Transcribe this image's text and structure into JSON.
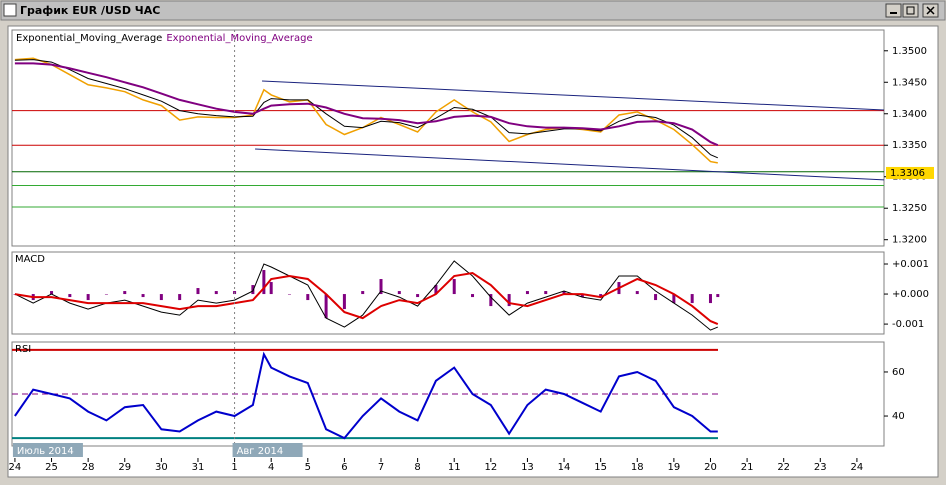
{
  "window": {
    "title": "График EUR /USD ЧАС"
  },
  "chart_data": [
    {
      "type": "line",
      "legend": [
        "Exponential_Moving_Average",
        "Exponential_Moving_Average"
      ],
      "xlim": [
        -0.08,
        23.74
      ],
      "ylim": [
        1.319,
        1.3533
      ],
      "yticks": [
        {
          "value": 1.35,
          "label": "1.3500"
        },
        {
          "value": 1.345,
          "label": "1.3450"
        },
        {
          "value": 1.34,
          "label": "1.3400"
        },
        {
          "value": 1.335,
          "label": "1.3350"
        },
        {
          "value": 1.33,
          "label": "1.3300"
        },
        {
          "value": 1.325,
          "label": "1.3250"
        },
        {
          "value": 1.32,
          "label": "1.3200"
        }
      ],
      "last_price": 1.3306,
      "hlines": [
        1.3405,
        1.335,
        1.3308,
        1.3286,
        1.3252
      ],
      "hline_colors": [
        "#cc0000",
        "#cc0000",
        "#006600",
        "#33aa33",
        "#33aa33"
      ],
      "trendlines": [
        {
          "x": [
            6.75,
            23.74
          ],
          "y": [
            1.3452,
            1.3406
          ],
          "color": "#1a237e"
        },
        {
          "x": [
            6.56,
            23.74
          ],
          "y": [
            1.3344,
            1.3295
          ],
          "color": "#1a237e"
        }
      ],
      "x": [
        0,
        0.5,
        1,
        1.5,
        2,
        2.5,
        3,
        3.5,
        4,
        4.5,
        5,
        5.5,
        6,
        6.5,
        6.8,
        7,
        7.5,
        8,
        8.5,
        9,
        9.5,
        10,
        10.5,
        11,
        11.5,
        12,
        12.5,
        13,
        13.5,
        14,
        14.5,
        15,
        15.5,
        16,
        16.5,
        17,
        17.5,
        18,
        18.5,
        19,
        19.2
      ],
      "series": [
        {
          "color": "#f0a000",
          "values": [
            1.3486,
            1.3488,
            1.3478,
            1.3462,
            1.3446,
            1.3441,
            1.3435,
            1.3422,
            1.3413,
            1.339,
            1.3395,
            1.3394,
            1.3394,
            1.3398,
            1.3438,
            1.343,
            1.3419,
            1.3422,
            1.3383,
            1.3367,
            1.3378,
            1.3394,
            1.3383,
            1.3371,
            1.3403,
            1.3422,
            1.3403,
            1.3387,
            1.3356,
            1.3367,
            1.3375,
            1.3378,
            1.3375,
            1.3371,
            1.3398,
            1.3403,
            1.339,
            1.3375,
            1.3351,
            1.3324,
            1.3322
          ]
        },
        {
          "color": "#000000",
          "values": [
            1.3485,
            1.3486,
            1.3482,
            1.347,
            1.3456,
            1.3448,
            1.344,
            1.343,
            1.342,
            1.3405,
            1.34,
            1.3397,
            1.3395,
            1.3396,
            1.3418,
            1.3424,
            1.3422,
            1.3422,
            1.34,
            1.338,
            1.3378,
            1.3388,
            1.3386,
            1.3378,
            1.3393,
            1.341,
            1.3407,
            1.3395,
            1.337,
            1.3368,
            1.3372,
            1.3376,
            1.3376,
            1.3373,
            1.3388,
            1.3398,
            1.3394,
            1.3382,
            1.3362,
            1.3335,
            1.333
          ]
        },
        {
          "color": "#800080",
          "values": [
            1.348,
            1.348,
            1.3478,
            1.3472,
            1.3465,
            1.3458,
            1.345,
            1.3442,
            1.3432,
            1.3422,
            1.3415,
            1.3408,
            1.3403,
            1.34,
            1.3408,
            1.3413,
            1.3415,
            1.3416,
            1.341,
            1.34,
            1.3393,
            1.3392,
            1.339,
            1.3385,
            1.3388,
            1.3395,
            1.3397,
            1.3395,
            1.3385,
            1.338,
            1.3378,
            1.3378,
            1.3377,
            1.3375,
            1.338,
            1.3387,
            1.3388,
            1.3385,
            1.3375,
            1.3355,
            1.335
          ]
        }
      ]
    },
    {
      "type": "line",
      "title": "MACD",
      "xlim": [
        -0.08,
        23.74
      ],
      "ylim": [
        -0.00133,
        0.0014
      ],
      "yticks": [
        {
          "value": 0.001,
          "label": "+0.001"
        },
        {
          "value": 0,
          "label": "+0.000"
        },
        {
          "value": -0.001,
          "label": "-0.001"
        }
      ],
      "x": [
        0,
        0.5,
        1,
        1.5,
        2,
        2.5,
        3,
        3.5,
        4,
        4.5,
        5,
        5.5,
        6,
        6.5,
        6.8,
        7,
        7.5,
        8,
        8.5,
        9,
        9.5,
        10,
        10.5,
        11,
        11.5,
        12,
        12.5,
        13,
        13.5,
        14,
        14.5,
        15,
        15.5,
        16,
        16.5,
        17,
        17.5,
        18,
        18.5,
        19,
        19.2
      ],
      "series": [
        {
          "kind": "bar",
          "color": "#800080",
          "values": [
            0,
            -0.0002,
            0.0001,
            -0.0001,
            -0.0002,
            0,
            0.0001,
            -0.0001,
            -0.0002,
            -0.0002,
            0.0002,
            0.0001,
            0.0001,
            0.0003,
            0.0008,
            0.0004,
            0,
            -0.0002,
            -0.0008,
            -0.0005,
            0.0001,
            0.0005,
            0.0001,
            -0.0001,
            0.0003,
            0.0005,
            -0.0001,
            -0.0004,
            -0.0004,
            0.0001,
            0.0001,
            0.0001,
            -0.0001,
            -0.0001,
            0.0004,
            0.0001,
            -0.0002,
            -0.0003,
            -0.0003,
            -0.0003,
            -0.0001
          ]
        },
        {
          "color": "#000000",
          "values": [
            0,
            -0.0003,
            0,
            -0.0003,
            -0.0005,
            -0.0003,
            -0.0002,
            -0.0004,
            -0.0006,
            -0.0007,
            -0.0002,
            -0.0003,
            -0.0002,
            0.0001,
            0.001,
            0.0009,
            0.0006,
            0.0003,
            -0.0008,
            -0.0011,
            -0.0007,
            0.0001,
            -0.0001,
            -0.0004,
            0.0003,
            0.0011,
            0.0006,
            -0.0001,
            -0.0007,
            -0.0003,
            -0.0001,
            0.0001,
            -0.0001,
            -0.0002,
            0.0006,
            0.0006,
            0.0001,
            -0.0003,
            -0.0007,
            -0.0012,
            -0.0011
          ]
        },
        {
          "color": "#dd0000",
          "values": [
            0,
            -0.0001,
            -0.0001,
            -0.0002,
            -0.0003,
            -0.0003,
            -0.0003,
            -0.0003,
            -0.0004,
            -0.0005,
            -0.0004,
            -0.0004,
            -0.0003,
            -0.0002,
            0.0002,
            0.0005,
            0.0006,
            0.0005,
            0,
            -0.0006,
            -0.0008,
            -0.0004,
            -0.0002,
            -0.0003,
            0,
            0.0006,
            0.0007,
            0.0003,
            -0.0003,
            -0.0004,
            -0.0002,
            0,
            0,
            -0.0001,
            0.0002,
            0.0005,
            0.0003,
            0,
            -0.0004,
            -0.0009,
            -0.001
          ]
        }
      ]
    },
    {
      "type": "line",
      "title": "RSI",
      "xlim": [
        -0.08,
        23.74
      ],
      "ylim": [
        26.4,
        73.6
      ],
      "yticks": [
        40,
        60
      ],
      "levels": [
        70,
        50,
        30
      ],
      "level_colors": [
        "#cc0000",
        "#800080",
        "#008080"
      ],
      "categories": [
        "24",
        "25",
        "28",
        "29",
        "30",
        "31",
        "1",
        "4",
        "5",
        "6",
        "7",
        "8",
        "11",
        "12",
        "13",
        "14",
        "15",
        "18",
        "19",
        "20",
        "21",
        "22",
        "23",
        "24"
      ],
      "periods": [
        {
          "label": "Июль 2014",
          "at": 0
        },
        {
          "label": "Авг 2014",
          "at": 6
        }
      ],
      "x": [
        0,
        0.5,
        1,
        1.5,
        2,
        2.5,
        3,
        3.5,
        4,
        4.5,
        5,
        5.5,
        6,
        6.5,
        6.8,
        7,
        7.5,
        8,
        8.5,
        9,
        9.5,
        10,
        10.5,
        11,
        11.5,
        12,
        12.5,
        13,
        13.5,
        14,
        14.5,
        15,
        15.5,
        16,
        16.5,
        17,
        17.5,
        18,
        18.5,
        19,
        19.2
      ],
      "series": [
        {
          "color": "#0000cc",
          "values": [
            40,
            52,
            50,
            48,
            42,
            38,
            44,
            45,
            34,
            33,
            38,
            42,
            40,
            45,
            68,
            62,
            58,
            55,
            34,
            30,
            40,
            48,
            42,
            38,
            56,
            62,
            50,
            45,
            32,
            45,
            52,
            50,
            46,
            42,
            58,
            60,
            56,
            44,
            40,
            33,
            33
          ]
        }
      ]
    }
  ]
}
